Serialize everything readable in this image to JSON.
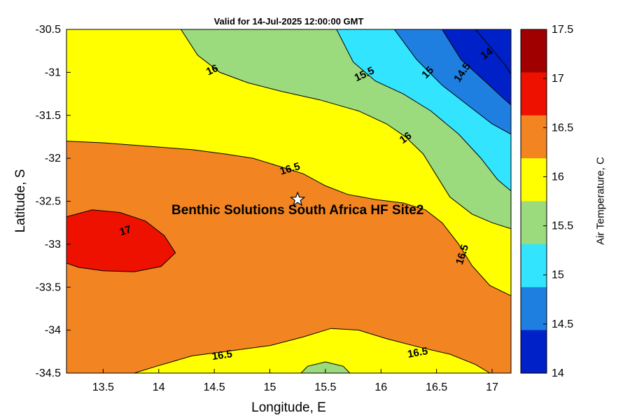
{
  "title": "Valid for 14-Jul-2025 12:00:00 GMT",
  "axes": {
    "xlabel": "Longitude, E",
    "ylabel": "Latitude, S",
    "x_ticks": [
      {
        "label": "13.5",
        "value": 13.5
      },
      {
        "label": "14",
        "value": 14
      },
      {
        "label": "14.5",
        "value": 14.5
      },
      {
        "label": "15",
        "value": 15
      },
      {
        "label": "15.5",
        "value": 15.5
      },
      {
        "label": "16",
        "value": 16
      },
      {
        "label": "16.5",
        "value": 16.5
      },
      {
        "label": "17",
        "value": 17
      }
    ],
    "y_ticks": [
      {
        "label": "-30.5",
        "value": -30.5
      },
      {
        "label": "-31",
        "value": -31
      },
      {
        "label": "-31.5",
        "value": -31.5
      },
      {
        "label": "-32",
        "value": -32
      },
      {
        "label": "-32.5",
        "value": -32.5
      },
      {
        "label": "-33",
        "value": -33
      },
      {
        "label": "-33.5",
        "value": -33.5
      },
      {
        "label": "-34",
        "value": -34
      },
      {
        "label": "-34.5",
        "value": -34.5
      }
    ]
  },
  "site": {
    "label": "Benthic Solutions South Africa HF Site2",
    "lon": 15.25,
    "lat": -32.48
  },
  "colorbar": {
    "label": "Air Temperature, C",
    "ticks_top_to_bottom": [
      "17.5",
      "17",
      "16.5",
      "16",
      "15.5",
      "15",
      "14.5",
      "14"
    ],
    "band_colors_top_to_bottom": [
      "#A00000",
      "#EE1100",
      "#F28522",
      "#FFFF00",
      "#9BDA7D",
      "#33E4FF",
      "#1E7FE0",
      "#0020C8"
    ]
  },
  "chart_data": {
    "type": "filled-contour-map",
    "title": "Valid for 14-Jul-2025 12:00:00 GMT",
    "xlabel": "Longitude, E",
    "ylabel": "Latitude, S",
    "colorbar_label": "Air Temperature, C",
    "unit": "C",
    "xlim": [
      13.17,
      17.17
    ],
    "ylim": [
      -34.5,
      -30.5
    ],
    "levels_c": [
      14,
      14.5,
      15,
      15.5,
      16,
      16.5,
      17,
      17.5
    ],
    "site_marker": {
      "label": "Benthic Solutions South Africa HF Site2",
      "lon": 15.25,
      "lat": -32.48
    },
    "regions": [
      {
        "level": "16.5-17",
        "color": "#F28522",
        "points": [
          [
            13.17,
            -30.5
          ],
          [
            17.17,
            -30.5
          ],
          [
            17.17,
            -34.5
          ],
          [
            13.17,
            -34.5
          ]
        ]
      },
      {
        "level": "16-16.5-north",
        "color": "#FFFF00",
        "points": [
          [
            13.17,
            -30.5
          ],
          [
            17.17,
            -30.5
          ],
          [
            17.17,
            -33.6
          ],
          [
            16.98,
            -33.48
          ],
          [
            16.82,
            -33.25
          ],
          [
            16.7,
            -33.0
          ],
          [
            16.55,
            -32.75
          ],
          [
            16.4,
            -32.6
          ],
          [
            16.2,
            -32.52
          ],
          [
            15.95,
            -32.48
          ],
          [
            15.7,
            -32.42
          ],
          [
            15.5,
            -32.32
          ],
          [
            15.3,
            -32.18
          ],
          [
            15.05,
            -32.08
          ],
          [
            14.85,
            -32.0
          ],
          [
            14.6,
            -31.95
          ],
          [
            14.3,
            -31.9
          ],
          [
            13.9,
            -31.86
          ],
          [
            13.5,
            -31.82
          ],
          [
            13.17,
            -31.8
          ]
        ]
      },
      {
        "level": "15.5-16",
        "color": "#9BDA7D",
        "points": [
          [
            14.2,
            -30.5
          ],
          [
            14.35,
            -30.8
          ],
          [
            14.55,
            -31.0
          ],
          [
            14.8,
            -31.12
          ],
          [
            15.1,
            -31.22
          ],
          [
            15.45,
            -31.32
          ],
          [
            15.8,
            -31.45
          ],
          [
            16.05,
            -31.6
          ],
          [
            16.22,
            -31.75
          ],
          [
            16.38,
            -31.95
          ],
          [
            16.5,
            -32.2
          ],
          [
            16.62,
            -32.45
          ],
          [
            16.82,
            -32.65
          ],
          [
            17.0,
            -32.75
          ],
          [
            17.17,
            -32.82
          ],
          [
            17.17,
            -32.38
          ],
          [
            17.05,
            -32.25
          ],
          [
            16.9,
            -32.0
          ],
          [
            16.7,
            -31.72
          ],
          [
            16.45,
            -31.45
          ],
          [
            16.2,
            -31.25
          ],
          [
            15.95,
            -31.1
          ],
          [
            15.75,
            -30.88
          ],
          [
            15.6,
            -30.5
          ]
        ]
      },
      {
        "level": "15-15.5",
        "color": "#33E4FF",
        "points": [
          [
            15.6,
            -30.5
          ],
          [
            15.75,
            -30.88
          ],
          [
            15.95,
            -31.1
          ],
          [
            16.2,
            -31.25
          ],
          [
            16.45,
            -31.45
          ],
          [
            16.7,
            -31.72
          ],
          [
            16.9,
            -32.0
          ],
          [
            17.05,
            -32.25
          ],
          [
            17.17,
            -32.38
          ],
          [
            17.17,
            -31.72
          ],
          [
            17.0,
            -31.6
          ],
          [
            16.8,
            -31.4
          ],
          [
            16.55,
            -31.15
          ],
          [
            16.32,
            -30.85
          ],
          [
            16.12,
            -30.5
          ]
        ]
      },
      {
        "level": "14.5-15",
        "color": "#1E7FE0",
        "points": [
          [
            16.12,
            -30.5
          ],
          [
            16.32,
            -30.85
          ],
          [
            16.55,
            -31.15
          ],
          [
            16.8,
            -31.4
          ],
          [
            17.0,
            -31.6
          ],
          [
            17.17,
            -31.72
          ],
          [
            17.17,
            -31.38
          ],
          [
            17.1,
            -31.3
          ],
          [
            16.95,
            -31.12
          ],
          [
            16.72,
            -30.85
          ],
          [
            16.55,
            -30.5
          ]
        ]
      },
      {
        "level": "14-14.5",
        "color": "#0020C8",
        "points": [
          [
            16.55,
            -30.5
          ],
          [
            16.72,
            -30.85
          ],
          [
            16.95,
            -31.12
          ],
          [
            17.1,
            -31.3
          ],
          [
            17.17,
            -31.38
          ],
          [
            17.17,
            -30.5
          ]
        ]
      },
      {
        "level": "17-17.5",
        "color": "#EE1100",
        "points": [
          [
            13.17,
            -32.68
          ],
          [
            13.4,
            -32.6
          ],
          [
            13.65,
            -32.63
          ],
          [
            13.88,
            -32.73
          ],
          [
            14.05,
            -32.9
          ],
          [
            14.15,
            -33.1
          ],
          [
            14.02,
            -33.26
          ],
          [
            13.78,
            -33.32
          ],
          [
            13.5,
            -33.31
          ],
          [
            13.28,
            -33.27
          ],
          [
            13.17,
            -33.22
          ]
        ]
      },
      {
        "level": "16-16.5-south",
        "color": "#FFFF00",
        "points": [
          [
            13.78,
            -34.5
          ],
          [
            13.98,
            -34.42
          ],
          [
            14.3,
            -34.3
          ],
          [
            14.65,
            -34.24
          ],
          [
            15.0,
            -34.18
          ],
          [
            15.3,
            -34.08
          ],
          [
            15.55,
            -33.98
          ],
          [
            15.8,
            -34.0
          ],
          [
            16.05,
            -34.1
          ],
          [
            16.35,
            -34.2
          ],
          [
            16.62,
            -34.28
          ],
          [
            16.85,
            -34.4
          ],
          [
            16.98,
            -34.5
          ]
        ]
      },
      {
        "level": "15.5-16-south",
        "color": "#9BDA7D",
        "points": [
          [
            15.28,
            -34.5
          ],
          [
            15.34,
            -34.42
          ],
          [
            15.5,
            -34.37
          ],
          [
            15.66,
            -34.42
          ],
          [
            15.72,
            -34.5
          ]
        ]
      }
    ],
    "contour_lines": [
      {
        "level": "16.5",
        "points": [
          [
            13.17,
            -31.8
          ],
          [
            13.5,
            -31.82
          ],
          [
            13.9,
            -31.86
          ],
          [
            14.3,
            -31.9
          ],
          [
            14.6,
            -31.95
          ],
          [
            14.85,
            -32.0
          ],
          [
            15.05,
            -32.08
          ],
          [
            15.3,
            -32.18
          ],
          [
            15.5,
            -32.32
          ],
          [
            15.7,
            -32.42
          ],
          [
            15.95,
            -32.48
          ],
          [
            16.2,
            -32.52
          ],
          [
            16.4,
            -32.6
          ],
          [
            16.55,
            -32.75
          ],
          [
            16.7,
            -33.0
          ],
          [
            16.82,
            -33.25
          ],
          [
            16.98,
            -33.48
          ],
          [
            17.17,
            -33.6
          ]
        ]
      },
      {
        "level": "16",
        "points": [
          [
            14.2,
            -30.5
          ],
          [
            14.35,
            -30.8
          ],
          [
            14.55,
            -31.0
          ],
          [
            14.8,
            -31.12
          ],
          [
            15.1,
            -31.22
          ],
          [
            15.45,
            -31.32
          ],
          [
            15.8,
            -31.45
          ],
          [
            16.05,
            -31.6
          ],
          [
            16.22,
            -31.75
          ],
          [
            16.38,
            -31.95
          ],
          [
            16.5,
            -32.2
          ],
          [
            16.62,
            -32.45
          ],
          [
            16.82,
            -32.65
          ],
          [
            17.0,
            -32.75
          ],
          [
            17.17,
            -32.82
          ]
        ]
      },
      {
        "level": "15.5",
        "points": [
          [
            15.6,
            -30.5
          ],
          [
            15.75,
            -30.88
          ],
          [
            15.95,
            -31.1
          ],
          [
            16.2,
            -31.25
          ],
          [
            16.45,
            -31.45
          ],
          [
            16.7,
            -31.72
          ],
          [
            16.9,
            -32.0
          ],
          [
            17.05,
            -32.25
          ],
          [
            17.17,
            -32.38
          ]
        ]
      },
      {
        "level": "15",
        "points": [
          [
            16.12,
            -30.5
          ],
          [
            16.32,
            -30.85
          ],
          [
            16.55,
            -31.15
          ],
          [
            16.8,
            -31.4
          ],
          [
            17.0,
            -31.6
          ],
          [
            17.17,
            -31.72
          ]
        ]
      },
      {
        "level": "14.5",
        "points": [
          [
            16.55,
            -30.5
          ],
          [
            16.72,
            -30.85
          ],
          [
            16.95,
            -31.12
          ],
          [
            17.1,
            -31.3
          ],
          [
            17.17,
            -31.38
          ]
        ]
      },
      {
        "level": "14",
        "points": [
          [
            16.85,
            -30.5
          ],
          [
            17.0,
            -30.73
          ],
          [
            17.12,
            -30.92
          ],
          [
            17.17,
            -31.02
          ]
        ]
      },
      {
        "level": "17",
        "points": [
          [
            13.17,
            -32.68
          ],
          [
            13.4,
            -32.6
          ],
          [
            13.65,
            -32.63
          ],
          [
            13.88,
            -32.73
          ],
          [
            14.05,
            -32.9
          ],
          [
            14.15,
            -33.1
          ],
          [
            14.02,
            -33.26
          ],
          [
            13.78,
            -33.32
          ],
          [
            13.5,
            -33.31
          ],
          [
            13.28,
            -33.27
          ],
          [
            13.17,
            -33.22
          ]
        ]
      },
      {
        "level": "16.5-south",
        "points": [
          [
            13.78,
            -34.5
          ],
          [
            13.98,
            -34.42
          ],
          [
            14.3,
            -34.3
          ],
          [
            14.65,
            -34.24
          ],
          [
            15.0,
            -34.18
          ],
          [
            15.3,
            -34.08
          ],
          [
            15.55,
            -33.98
          ],
          [
            15.8,
            -34.0
          ],
          [
            16.05,
            -34.1
          ],
          [
            16.35,
            -34.2
          ],
          [
            16.62,
            -34.28
          ],
          [
            16.85,
            -34.4
          ],
          [
            16.98,
            -34.5
          ]
        ]
      },
      {
        "level": "16-south",
        "points": [
          [
            15.28,
            -34.5
          ],
          [
            15.34,
            -34.42
          ],
          [
            15.5,
            -34.37
          ],
          [
            15.66,
            -34.42
          ],
          [
            15.72,
            -34.5
          ]
        ]
      }
    ],
    "contour_labels": [
      {
        "text": "16",
        "lon": 14.48,
        "lat": -30.97,
        "rot": -25
      },
      {
        "text": "15.5",
        "lon": 15.85,
        "lat": -31.02,
        "rot": -25
      },
      {
        "text": "15",
        "lon": 16.42,
        "lat": -31.0,
        "rot": -45
      },
      {
        "text": "14.5",
        "lon": 16.73,
        "lat": -31.0,
        "rot": -55
      },
      {
        "text": "14",
        "lon": 16.95,
        "lat": -30.78,
        "rot": -35
      },
      {
        "text": "16",
        "lon": 16.22,
        "lat": -31.76,
        "rot": -35
      },
      {
        "text": "16.5",
        "lon": 15.18,
        "lat": -32.12,
        "rot": -16
      },
      {
        "text": "17",
        "lon": 13.7,
        "lat": -32.84,
        "rot": -18
      },
      {
        "text": "16.5",
        "lon": 16.73,
        "lat": -33.12,
        "rot": -72
      },
      {
        "text": "16.5",
        "lon": 14.57,
        "lat": -34.29,
        "rot": -8
      },
      {
        "text": "16.5",
        "lon": 16.33,
        "lat": -34.26,
        "rot": -10
      }
    ]
  }
}
